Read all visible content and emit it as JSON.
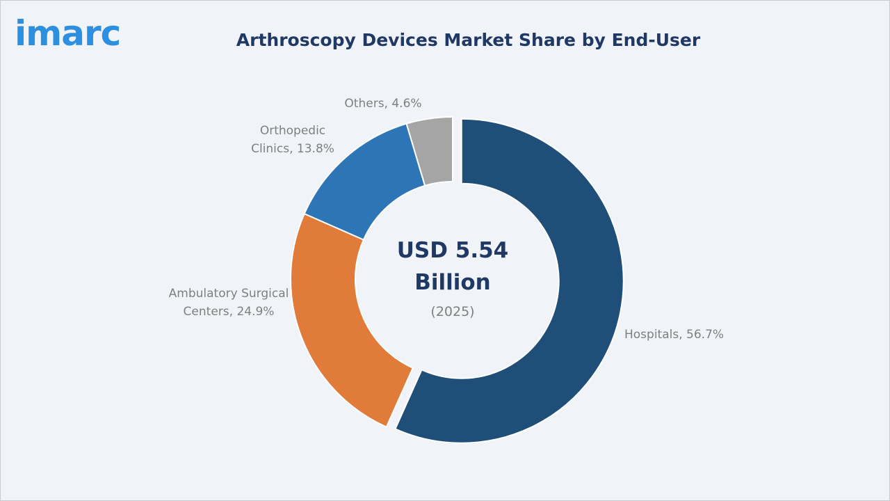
{
  "logo": "imarc",
  "chart_data": {
    "type": "donut",
    "title": "Arthroscopy Devices Market Share by End-User",
    "center_title": "USD 5.54 Billion",
    "center_subtitle": "(2025)",
    "categories": [
      "Hospitals,",
      "Ambulatory Surgical Centers,",
      "Orthopedic Clinics,",
      "Others,"
    ],
    "values": [
      56.7,
      24.9,
      13.8,
      4.6
    ],
    "value_labels": [
      "56.7%",
      "24.9%",
      "13.8%",
      "4.6%"
    ],
    "colors": [
      "#1f4e79",
      "#e07b39",
      "#2e75b6",
      "#a5a5a5"
    ]
  }
}
